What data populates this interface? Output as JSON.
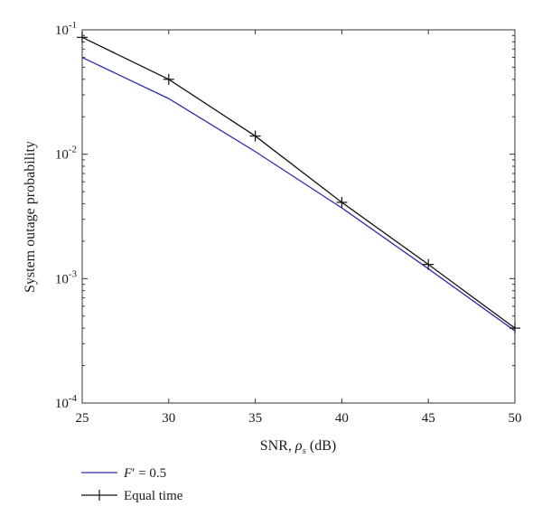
{
  "chart_data": {
    "type": "line",
    "title": "",
    "xlabel": {
      "prefix": "SNR, ",
      "symbol": "ρ",
      "subscript": "s",
      "suffix": " (dB)"
    },
    "ylabel": "System outage probability",
    "xlim": [
      25,
      50
    ],
    "ylim": [
      0.0001,
      0.1
    ],
    "yscale": "log",
    "grid": false,
    "legend_position": "bottom-left, below axes",
    "x_ticks": [
      25,
      30,
      35,
      40,
      45,
      50
    ],
    "x_tick_labels": [
      "25",
      "30",
      "35",
      "40",
      "45",
      "50"
    ],
    "y_ticks": [
      0.1,
      0.01,
      0.001,
      0.0001
    ],
    "y_tick_labels": [
      {
        "base": "10",
        "exp": "-1"
      },
      {
        "base": "10",
        "exp": "-2"
      },
      {
        "base": "10",
        "exp": "-3"
      },
      {
        "base": "10",
        "exp": "-4"
      }
    ],
    "x": [
      25,
      30,
      35,
      40,
      45,
      50
    ],
    "series": [
      {
        "name": {
          "symbol": "F",
          "prime": "′",
          "rest": " = 0.5"
        },
        "values": [
          0.06,
          0.028,
          0.0105,
          0.0037,
          0.0012,
          0.00038
        ],
        "color": "#2b2bb0",
        "marker": "none"
      },
      {
        "name": {
          "symbol": "",
          "prime": "",
          "rest": "Equal time"
        },
        "values": [
          0.087,
          0.04,
          0.014,
          0.0041,
          0.0013,
          0.0004
        ],
        "color": "#111111",
        "marker": "plus"
      }
    ]
  }
}
